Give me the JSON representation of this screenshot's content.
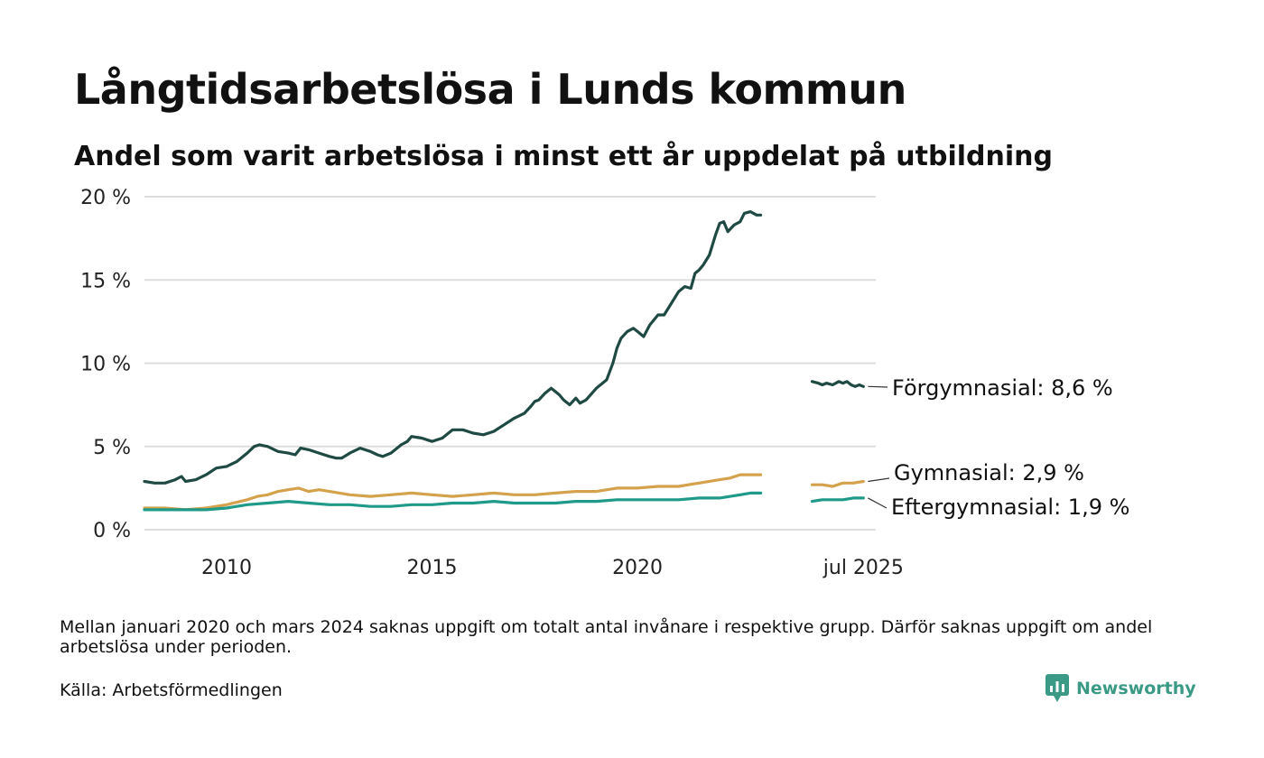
{
  "title": "Långtidsarbetslösa i Lunds kommun",
  "subtitle": "Andel som varit arbetslösa i minst ett år uppdelat på utbildning",
  "footnote": "Mellan januari 2020 och mars 2024 saknas uppgift om totalt antal invånare i respektive grupp. Därför saknas uppgift om andel arbetslösa under perioden.",
  "source": "Källa: Arbetsförmedlingen",
  "brand": "Newsworthy",
  "colors": {
    "forgymnasial": "#1f4a44",
    "gymnasial": "#d4a24c",
    "eftergymnasial": "#1f9a88",
    "grid": "#dddddd",
    "brand": "#3a9a86"
  },
  "chart_data": {
    "type": "line",
    "x_unit": "year (decimal)",
    "xlim": [
      2008.0,
      2025.8
    ],
    "ylim": [
      0,
      20
    ],
    "y_ticks": [
      {
        "value": 0,
        "label": "0 %"
      },
      {
        "value": 5,
        "label": "5 %"
      },
      {
        "value": 10,
        "label": "10 %"
      },
      {
        "value": 15,
        "label": "15 %"
      },
      {
        "value": 20,
        "label": "20 %"
      }
    ],
    "x_ticks": [
      {
        "value": 2010,
        "label": "2010"
      },
      {
        "value": 2015,
        "label": "2015"
      },
      {
        "value": 2020,
        "label": "2020"
      },
      {
        "value": 2025.5,
        "label": "jul 2025"
      }
    ],
    "grid": "horizontal",
    "series": [
      {
        "name": "Förgymnasial",
        "end_label": "Förgymnasial: 8,6 %",
        "color_key": "forgymnasial",
        "segments": [
          [
            [
              2008.0,
              2.9
            ],
            [
              2008.25,
              2.8
            ],
            [
              2008.5,
              2.8
            ],
            [
              2008.75,
              3.0
            ],
            [
              2008.9,
              3.2
            ],
            [
              2009.0,
              2.9
            ],
            [
              2009.25,
              3.0
            ],
            [
              2009.5,
              3.3
            ],
            [
              2009.75,
              3.7
            ],
            [
              2010.0,
              3.8
            ],
            [
              2010.25,
              4.1
            ],
            [
              2010.5,
              4.6
            ],
            [
              2010.67,
              5.0
            ],
            [
              2010.8,
              5.1
            ],
            [
              2011.0,
              5.0
            ],
            [
              2011.25,
              4.7
            ],
            [
              2011.5,
              4.6
            ],
            [
              2011.67,
              4.5
            ],
            [
              2011.8,
              4.9
            ],
            [
              2012.0,
              4.8
            ],
            [
              2012.25,
              4.6
            ],
            [
              2012.5,
              4.4
            ],
            [
              2012.67,
              4.3
            ],
            [
              2012.8,
              4.3
            ],
            [
              2013.0,
              4.6
            ],
            [
              2013.25,
              4.9
            ],
            [
              2013.5,
              4.7
            ],
            [
              2013.67,
              4.5
            ],
            [
              2013.8,
              4.4
            ],
            [
              2014.0,
              4.6
            ],
            [
              2014.25,
              5.1
            ],
            [
              2014.4,
              5.3
            ],
            [
              2014.5,
              5.6
            ],
            [
              2014.75,
              5.5
            ],
            [
              2015.0,
              5.3
            ],
            [
              2015.25,
              5.5
            ],
            [
              2015.5,
              6.0
            ],
            [
              2015.75,
              6.0
            ],
            [
              2016.0,
              5.8
            ],
            [
              2016.25,
              5.7
            ],
            [
              2016.5,
              5.9
            ],
            [
              2016.75,
              6.3
            ],
            [
              2017.0,
              6.7
            ],
            [
              2017.25,
              7.0
            ],
            [
              2017.4,
              7.4
            ],
            [
              2017.5,
              7.7
            ],
            [
              2017.6,
              7.8
            ],
            [
              2017.75,
              8.2
            ],
            [
              2017.9,
              8.5
            ],
            [
              2018.0,
              8.3
            ],
            [
              2018.1,
              8.1
            ],
            [
              2018.2,
              7.8
            ],
            [
              2018.35,
              7.5
            ],
            [
              2018.5,
              7.9
            ],
            [
              2018.6,
              7.6
            ],
            [
              2018.75,
              7.8
            ],
            [
              2019.0,
              8.5
            ],
            [
              2019.25,
              9.0
            ],
            [
              2019.4,
              10.0
            ],
            [
              2019.5,
              10.9
            ],
            [
              2019.6,
              11.5
            ],
            [
              2019.75,
              11.9
            ],
            [
              2019.9,
              12.1
            ],
            [
              2020.0,
              11.9
            ],
            [
              2020.15,
              11.6
            ],
            [
              2020.3,
              12.3
            ],
            [
              2020.5,
              12.9
            ],
            [
              2020.65,
              12.9
            ],
            [
              2020.8,
              13.5
            ],
            [
              2021.0,
              14.3
            ],
            [
              2021.15,
              14.6
            ],
            [
              2021.3,
              14.5
            ],
            [
              2021.4,
              15.4
            ],
            [
              2021.5,
              15.6
            ],
            [
              2021.6,
              15.9
            ],
            [
              2021.75,
              16.5
            ],
            [
              2021.9,
              17.7
            ],
            [
              2022.0,
              18.4
            ],
            [
              2022.1,
              18.5
            ],
            [
              2022.2,
              17.9
            ],
            [
              2022.35,
              18.3
            ],
            [
              2022.5,
              18.5
            ],
            [
              2022.6,
              19.0
            ],
            [
              2022.75,
              19.1
            ],
            [
              2022.9,
              18.9
            ],
            [
              2023.0,
              18.9
            ]
          ],
          [
            [
              2024.25,
              8.9
            ],
            [
              2024.4,
              8.8
            ],
            [
              2024.5,
              8.7
            ],
            [
              2024.6,
              8.8
            ],
            [
              2024.75,
              8.7
            ],
            [
              2024.9,
              8.9
            ],
            [
              2025.0,
              8.8
            ],
            [
              2025.1,
              8.9
            ],
            [
              2025.2,
              8.7
            ],
            [
              2025.3,
              8.6
            ],
            [
              2025.4,
              8.7
            ],
            [
              2025.5,
              8.6
            ]
          ]
        ]
      },
      {
        "name": "Gymnasial",
        "end_label": "Gymnasial: 2,9 %",
        "color_key": "gymnasial",
        "segments": [
          [
            [
              2008.0,
              1.3
            ],
            [
              2008.5,
              1.3
            ],
            [
              2009.0,
              1.2
            ],
            [
              2009.5,
              1.3
            ],
            [
              2010.0,
              1.5
            ],
            [
              2010.5,
              1.8
            ],
            [
              2010.75,
              2.0
            ],
            [
              2011.0,
              2.1
            ],
            [
              2011.25,
              2.3
            ],
            [
              2011.5,
              2.4
            ],
            [
              2011.75,
              2.5
            ],
            [
              2012.0,
              2.3
            ],
            [
              2012.25,
              2.4
            ],
            [
              2012.5,
              2.3
            ],
            [
              2012.75,
              2.2
            ],
            [
              2013.0,
              2.1
            ],
            [
              2013.5,
              2.0
            ],
            [
              2014.0,
              2.1
            ],
            [
              2014.5,
              2.2
            ],
            [
              2015.0,
              2.1
            ],
            [
              2015.5,
              2.0
            ],
            [
              2016.0,
              2.1
            ],
            [
              2016.5,
              2.2
            ],
            [
              2017.0,
              2.1
            ],
            [
              2017.5,
              2.1
            ],
            [
              2018.0,
              2.2
            ],
            [
              2018.5,
              2.3
            ],
            [
              2019.0,
              2.3
            ],
            [
              2019.5,
              2.5
            ],
            [
              2020.0,
              2.5
            ],
            [
              2020.5,
              2.6
            ],
            [
              2021.0,
              2.6
            ],
            [
              2021.5,
              2.8
            ],
            [
              2022.0,
              3.0
            ],
            [
              2022.25,
              3.1
            ],
            [
              2022.5,
              3.3
            ],
            [
              2022.75,
              3.3
            ],
            [
              2023.0,
              3.3
            ]
          ],
          [
            [
              2024.25,
              2.7
            ],
            [
              2024.5,
              2.7
            ],
            [
              2024.75,
              2.6
            ],
            [
              2025.0,
              2.8
            ],
            [
              2025.25,
              2.8
            ],
            [
              2025.5,
              2.9
            ]
          ]
        ]
      },
      {
        "name": "Eftergymnasial",
        "end_label": "Eftergymnasial: 1,9 %",
        "color_key": "eftergymnasial",
        "segments": [
          [
            [
              2008.0,
              1.2
            ],
            [
              2008.5,
              1.2
            ],
            [
              2009.0,
              1.2
            ],
            [
              2009.5,
              1.2
            ],
            [
              2010.0,
              1.3
            ],
            [
              2010.5,
              1.5
            ],
            [
              2011.0,
              1.6
            ],
            [
              2011.5,
              1.7
            ],
            [
              2012.0,
              1.6
            ],
            [
              2012.5,
              1.5
            ],
            [
              2013.0,
              1.5
            ],
            [
              2013.5,
              1.4
            ],
            [
              2014.0,
              1.4
            ],
            [
              2014.5,
              1.5
            ],
            [
              2015.0,
              1.5
            ],
            [
              2015.5,
              1.6
            ],
            [
              2016.0,
              1.6
            ],
            [
              2016.5,
              1.7
            ],
            [
              2017.0,
              1.6
            ],
            [
              2017.5,
              1.6
            ],
            [
              2018.0,
              1.6
            ],
            [
              2018.5,
              1.7
            ],
            [
              2019.0,
              1.7
            ],
            [
              2019.5,
              1.8
            ],
            [
              2020.0,
              1.8
            ],
            [
              2020.5,
              1.8
            ],
            [
              2021.0,
              1.8
            ],
            [
              2021.5,
              1.9
            ],
            [
              2022.0,
              1.9
            ],
            [
              2022.5,
              2.1
            ],
            [
              2022.75,
              2.2
            ],
            [
              2023.0,
              2.2
            ]
          ],
          [
            [
              2024.25,
              1.7
            ],
            [
              2024.5,
              1.8
            ],
            [
              2024.75,
              1.8
            ],
            [
              2025.0,
              1.8
            ],
            [
              2025.25,
              1.9
            ],
            [
              2025.5,
              1.9
            ]
          ]
        ]
      }
    ]
  }
}
